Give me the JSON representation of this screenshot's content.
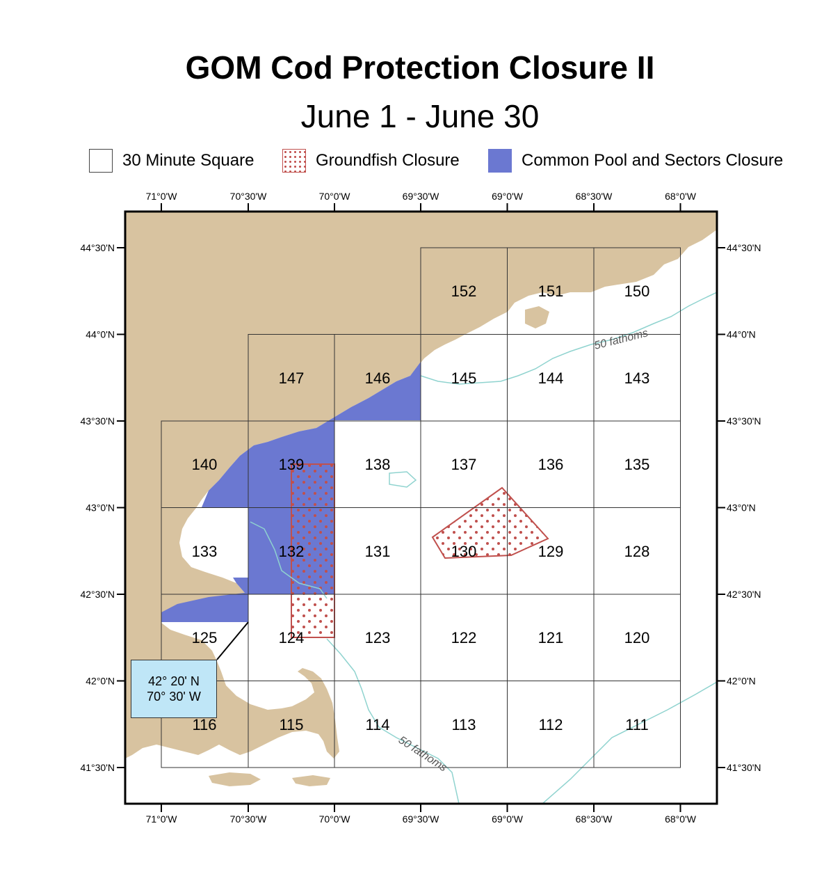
{
  "title": "GOM Cod Protection Closure II",
  "subtitle": "June 1 - June 30",
  "legend": {
    "square": "30 Minute Square",
    "groundfish": "Groundfish Closure",
    "pool": "Common Pool and Sectors Closure"
  },
  "colors": {
    "land": "#d8c3a0",
    "pool": "#6b78d1",
    "groundfish": "#c0504d",
    "contour": "#8fd3cf",
    "callout": "#bfe6f7"
  },
  "lon_labels": [
    "71°0'W",
    "70°30'W",
    "70°0'W",
    "69°30'W",
    "69°0'W",
    "68°30'W",
    "68°0'W"
  ],
  "lat_labels": [
    "44°30'N",
    "44°0'N",
    "43°30'N",
    "43°0'N",
    "42°30'N",
    "42°0'N",
    "41°30'N"
  ],
  "squares": [
    "152",
    "151",
    "150",
    "147",
    "146",
    "145",
    "144",
    "143",
    "140",
    "139",
    "138",
    "137",
    "136",
    "135",
    "133",
    "132",
    "131",
    "130",
    "129",
    "128",
    "125",
    "124",
    "123",
    "122",
    "121",
    "120",
    "116",
    "115",
    "114",
    "113",
    "112",
    "111"
  ],
  "contour_labels": [
    "50 fathoms",
    "50 fathoms"
  ],
  "callout": {
    "line1": "42° 20' N",
    "line2": "70° 30' W"
  }
}
